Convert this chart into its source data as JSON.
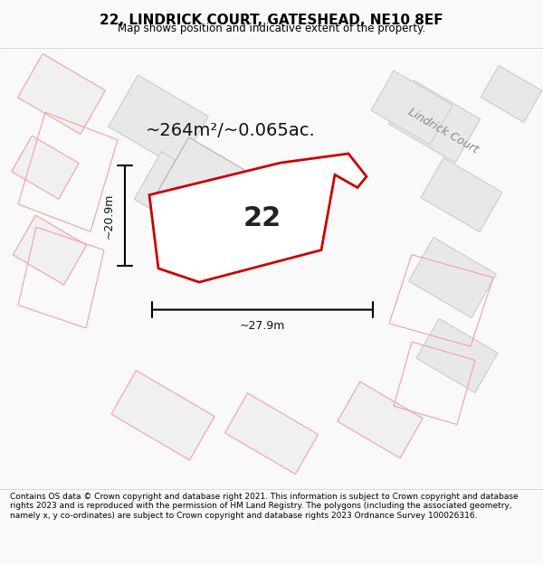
{
  "title": "22, LINDRICK COURT, GATESHEAD, NE10 8EF",
  "subtitle": "Map shows position and indicative extent of the property.",
  "footer": "Contains OS data © Crown copyright and database right 2021. This information is subject to Crown copyright and database rights 2023 and is reproduced with the permission of HM Land Registry. The polygons (including the associated geometry, namely x, y co-ordinates) are subject to Crown copyright and database rights 2023 Ordnance Survey 100026316.",
  "area_label": "~264m²/~0.065ac.",
  "property_label": "22",
  "dim_width_label": "~27.9m",
  "dim_height_label": "~20.9m",
  "street_label": "Lindrick Court",
  "bg_color": "#f9f9f9",
  "map_bg_color": "#ffffff",
  "building_fill": "#e8e8e8",
  "building_edge_pink": "#f4a0a0",
  "property_edge_color": "#cc0000",
  "property_fill": "#ffffff",
  "dim_line_color": "#000000"
}
